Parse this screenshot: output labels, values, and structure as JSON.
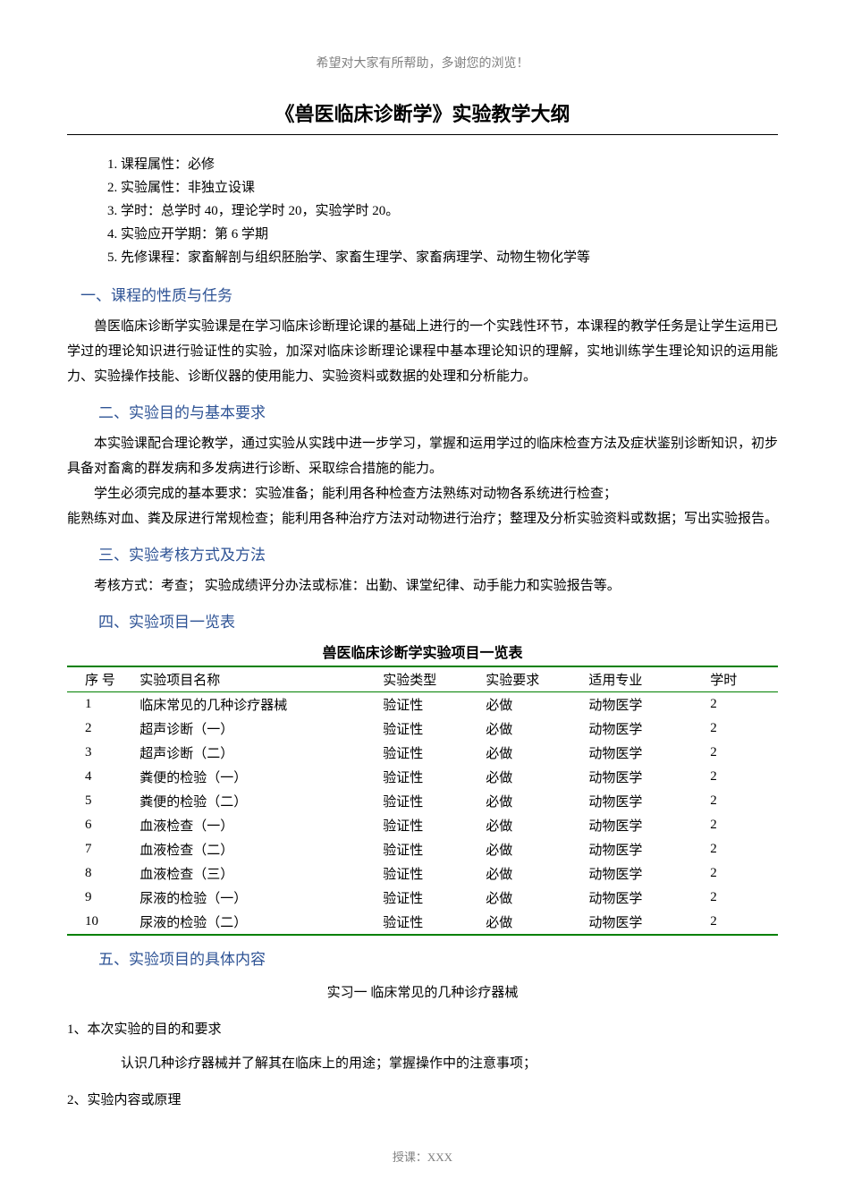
{
  "header_note": "希望对大家有所帮助，多谢您的浏览！",
  "main_title": "《兽医临床诊断学》实验教学大纲",
  "info": {
    "i1": "1. 课程属性：必修",
    "i2": "2. 实验属性：非独立设课",
    "i3": "3. 学时：总学时 40，理论学时 20，实验学时 20。",
    "i4": "4. 实验应开学期：第 6 学期",
    "i5": "5. 先修课程：家畜解剖与组织胚胎学、家畜生理学、家畜病理学、动物生物化学等"
  },
  "s1": {
    "heading": "一、课程的性质与任务",
    "p1": "兽医临床诊断学实验课是在学习临床诊断理论课的基础上进行的一个实践性环节，本课程的教学任务是让学生运用已学过的理论知识进行验证性的实验，加深对临床诊断理论课程中基本理论知识的理解，实地训练学生理论知识的运用能力、实验操作技能、诊断仪器的使用能力、实验资料或数据的处理和分析能力。"
  },
  "s2": {
    "heading": "二、实验目的与基本要求",
    "p1": "本实验课配合理论教学，通过实验从实践中进一步学习，掌握和运用学过的临床检查方法及症状鉴别诊断知识，初步具备对畜禽的群发病和多发病进行诊断、采取综合措施的能力。",
    "p2": "学生必须完成的基本要求：实验准备；能利用各种检查方法熟练对动物各系统进行检查；",
    "p3": "能熟练对血、粪及尿进行常规检查；能利用各种治疗方法对动物进行治疗；整理及分析实验资料或数据；写出实验报告。"
  },
  "s3": {
    "heading": "三、实验考核方式及方法",
    "p1": "考核方式：考查；  实验成绩评分办法或标准：出勤、课堂纪律、动手能力和实验报告等。"
  },
  "s4": {
    "heading": "四、实验项目一览表"
  },
  "table": {
    "title": "兽医临床诊断学实验项目一览表",
    "headers": [
      "序  号",
      "实验项目名称",
      "实验类型",
      "实验要求",
      "适用专业",
      "学时"
    ],
    "rows": [
      [
        "1",
        "临床常见的几种诊疗器械",
        "验证性",
        "必做",
        "动物医学",
        "2"
      ],
      [
        "2",
        "超声诊断（一）",
        "验证性",
        "必做",
        "动物医学",
        "2"
      ],
      [
        "3",
        "超声诊断（二）",
        "验证性",
        "必做",
        "动物医学",
        "2"
      ],
      [
        "4",
        "粪便的检验（一）",
        "验证性",
        "必做",
        "动物医学",
        "2"
      ],
      [
        "5",
        "粪便的检验（二）",
        "验证性",
        "必做",
        "动物医学",
        "2"
      ],
      [
        "6",
        "血液检查（一）",
        "验证性",
        "必做",
        "动物医学",
        "2"
      ],
      [
        "7",
        "血液检查（二）",
        "验证性",
        "必做",
        "动物医学",
        "2"
      ],
      [
        "8",
        "血液检查（三）",
        "验证性",
        "必做",
        "动物医学",
        "2"
      ],
      [
        "9",
        "尿液的检验（一）",
        "验证性",
        "必做",
        "动物医学",
        "2"
      ],
      [
        "10",
        "尿液的检验（二）",
        "验证性",
        "必做",
        "动物医学",
        "2"
      ]
    ]
  },
  "s5": {
    "heading": "五、实验项目的具体内容",
    "subtitle": "实习一    临床常见的几种诊疗器械",
    "h1": "1、本次实验的目的和要求",
    "p1": "认识几种诊疗器械并了解其在临床上的用途；掌握操作中的注意事项；",
    "h2": "2、实验内容或原理"
  },
  "footer": "授课：XXX"
}
